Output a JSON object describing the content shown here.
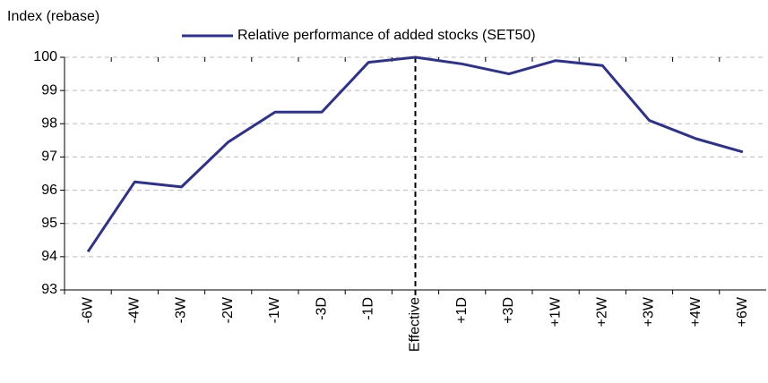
{
  "chart_data": {
    "type": "line",
    "ylabel": "Index (rebase)",
    "categories": [
      "-6W",
      "-4W",
      "-3W",
      "-2W",
      "-1W",
      "-3D",
      "-1D",
      "Effective",
      "+1D",
      "+3D",
      "+1W",
      "+2W",
      "+3W",
      "+4W",
      "+6W"
    ],
    "series": [
      {
        "name": "Relative performance of added stocks (SET50)",
        "color": "#2e3192",
        "values": [
          94.15,
          96.25,
          96.1,
          97.45,
          98.35,
          98.35,
          99.85,
          100,
          99.8,
          99.5,
          99.9,
          99.75,
          98.1,
          97.55,
          97.15
        ]
      }
    ],
    "ylim": [
      93,
      100
    ],
    "yticks": [
      93,
      94,
      95,
      96,
      97,
      98,
      99,
      100
    ],
    "grid": true,
    "vline": "Effective",
    "legend": "top"
  }
}
